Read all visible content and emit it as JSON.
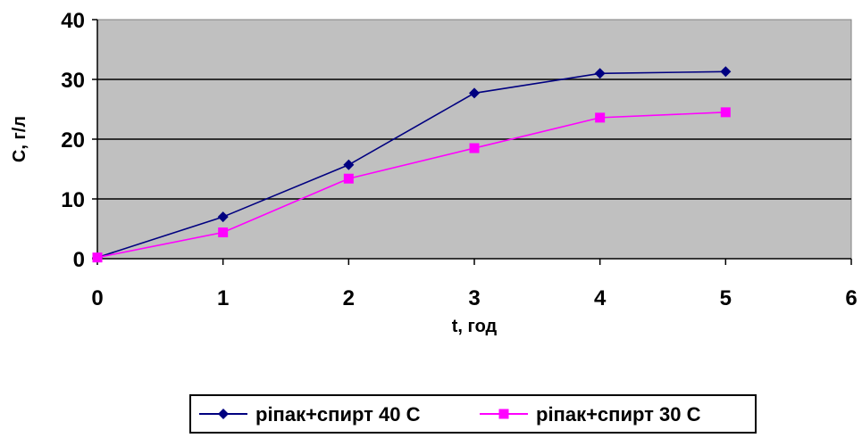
{
  "chart_data": {
    "type": "line",
    "title": "",
    "xlabel": "t, год",
    "ylabel": "C, г/л",
    "xlim": [
      0,
      6
    ],
    "ylim": [
      0,
      40
    ],
    "x_ticks": [
      "0",
      "1",
      "2",
      "3",
      "4",
      "5",
      "6"
    ],
    "y_ticks": [
      "0",
      "10",
      "20",
      "30",
      "40"
    ],
    "grid": "horizontal",
    "plot_background": "#c0c0c0",
    "legend_position": "bottom",
    "series": [
      {
        "name": "ріпак+спирт 40 С",
        "color": "#000080",
        "marker": "diamond",
        "x": [
          0,
          1,
          2,
          3,
          4,
          5
        ],
        "y": [
          0.2,
          7.0,
          15.7,
          27.7,
          31.0,
          31.3
        ]
      },
      {
        "name": "ріпак+спирт 30 С",
        "color": "#ff00ff",
        "marker": "square",
        "x": [
          0,
          1,
          2,
          3,
          4,
          5
        ],
        "y": [
          0.2,
          4.4,
          13.4,
          18.5,
          23.6,
          24.5
        ]
      }
    ]
  }
}
